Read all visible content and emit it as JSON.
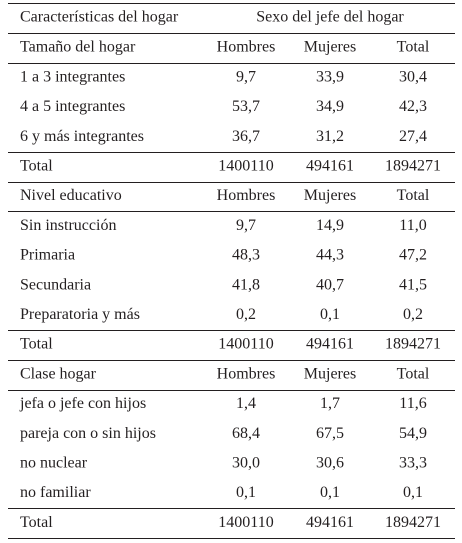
{
  "header": {
    "row_label": "Características del hogar",
    "group": "Sexo del jefe del hogar"
  },
  "sections": [
    {
      "title": "Tamaño del hogar",
      "columns": [
        "Hombres",
        "Mujeres",
        "Total"
      ],
      "rows": [
        {
          "label": "1 a 3 integrantes",
          "values": [
            "9,7",
            "33,9",
            "30,4"
          ]
        },
        {
          "label": "4 a 5 integrantes",
          "values": [
            "53,7",
            "34,9",
            "42,3"
          ]
        },
        {
          "label": "6 y más integrantes",
          "values": [
            "36,7",
            "31,2",
            "27,4"
          ]
        }
      ],
      "total": {
        "label": "Total",
        "values": [
          "1400110",
          "494161",
          "1894271"
        ]
      }
    },
    {
      "title": "Nivel educativo",
      "columns": [
        "Hombres",
        "Mujeres",
        "Total"
      ],
      "rows": [
        {
          "label": "Sin instrucción",
          "values": [
            "9,7",
            "14,9",
            "11,0"
          ]
        },
        {
          "label": "Primaria",
          "values": [
            "48,3",
            "44,3",
            "47,2"
          ]
        },
        {
          "label": "Secundaria",
          "values": [
            "41,8",
            "40,7",
            "41,5"
          ]
        },
        {
          "label": "Preparatoria y más",
          "values": [
            "0,2",
            "0,1",
            "0,2"
          ]
        }
      ],
      "total": {
        "label": "Total",
        "values": [
          "1400110",
          "494161",
          "1894271"
        ]
      }
    },
    {
      "title": "Clase hogar",
      "columns": [
        "Hombres",
        "Mujeres",
        "Total"
      ],
      "rows": [
        {
          "label": "jefa o jefe con hijos",
          "values": [
            "1,4",
            "1,7",
            "11,6"
          ]
        },
        {
          "label": "pareja con o sin hijos",
          "values": [
            "68,4",
            "67,5",
            "54,9"
          ]
        },
        {
          "label": "no nuclear",
          "values": [
            "30,0",
            "30,6",
            "33,3"
          ]
        },
        {
          "label": "no familiar",
          "values": [
            "0,1",
            "0,1",
            "0,1"
          ]
        }
      ],
      "total": {
        "label": "Total",
        "values": [
          "1400110",
          "494161",
          "1894271"
        ]
      }
    }
  ]
}
